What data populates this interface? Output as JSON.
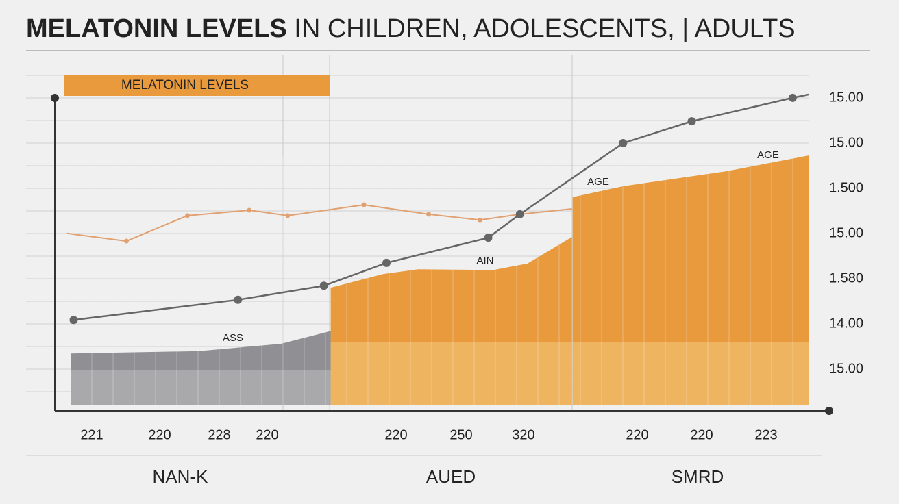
{
  "chart_data": {
    "type": "line",
    "title": [
      "MELATONIN LEVELS",
      "IN CHILDREN, ADOLESCENTS, | ADULTS"
    ],
    "legend": "MELATONIN LEVELS",
    "xlim": [
      0,
      100
    ],
    "ylim": [
      0,
      100
    ],
    "y_axis_labels": [
      "15.00",
      "15.00",
      "1.500",
      "15.00",
      "1.580",
      "14.00",
      "15.00"
    ],
    "x_labels": [
      "221",
      "220",
      "228",
      "220",
      "220",
      "250",
      "320",
      "220",
      "220",
      "223"
    ],
    "groups": [
      "NAN-K",
      "AUED",
      "SMRD"
    ],
    "annotations": [
      "ASS",
      "AIN",
      "AGE",
      "AGE"
    ],
    "areas": [
      {
        "color": "#8f8f94",
        "x": [
          2.1,
          19.1,
          30,
          36.8
        ],
        "values": [
          17.1,
          17.8,
          20,
          23.9
        ]
      },
      {
        "color": "#e89a3c",
        "x": [
          36.6,
          43.6,
          48.2,
          58.2,
          62.7,
          68.6
        ],
        "values": [
          36.7,
          40.8,
          42.2,
          42,
          43.9,
          51.8
        ]
      },
      {
        "color": "#e89a3c",
        "x": [
          68.7,
          75.5,
          89.1,
          100
        ],
        "values": [
          63.7,
          67,
          71.4,
          76.1
        ]
      }
    ],
    "series": [
      {
        "color": "#e0a070",
        "x": [
          1.6,
          9.5,
          17.6,
          25.8,
          30.9,
          41,
          49.6,
          56.4,
          61.7,
          68.6
        ],
        "values": [
          52.9,
          50.6,
          58.2,
          59.8,
          58.2,
          61.4,
          58.6,
          56.9,
          58.6,
          60.2
        ]
      },
      {
        "color": "#666666",
        "x": [
          2.5,
          24.3,
          35.7,
          44,
          57.5,
          61.7,
          75.4,
          84.5,
          97.9
        ],
        "values": [
          27.1,
          33.1,
          37.3,
          44.1,
          51.6,
          58.6,
          79.8,
          86.3,
          93.3
        ]
      }
    ]
  }
}
